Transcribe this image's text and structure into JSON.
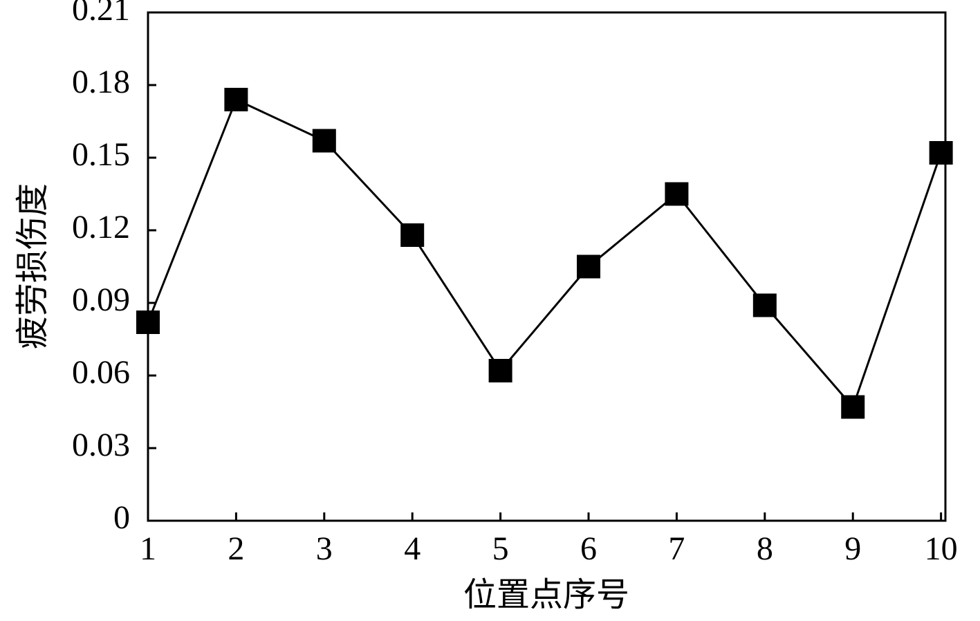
{
  "chart_data": {
    "type": "line",
    "x_label": "位置点序号",
    "y_label": "疲劳损伤度",
    "x": [
      1,
      2,
      3,
      4,
      5,
      6,
      7,
      8,
      9,
      10
    ],
    "series": [
      {
        "color": "#000000",
        "values": [
          0.082,
          0.174,
          0.157,
          0.118,
          0.062,
          0.105,
          0.135,
          0.089,
          0.047,
          0.152
        ]
      }
    ],
    "xlim": [
      1,
      10.05
    ],
    "xticks": [
      1,
      2,
      3,
      4,
      5,
      6,
      7,
      8,
      9,
      10
    ],
    "ylim": [
      0,
      0.21
    ],
    "yticks": [
      0,
      0.03,
      0.06,
      0.09,
      0.12,
      0.15,
      0.18,
      0.21
    ]
  }
}
